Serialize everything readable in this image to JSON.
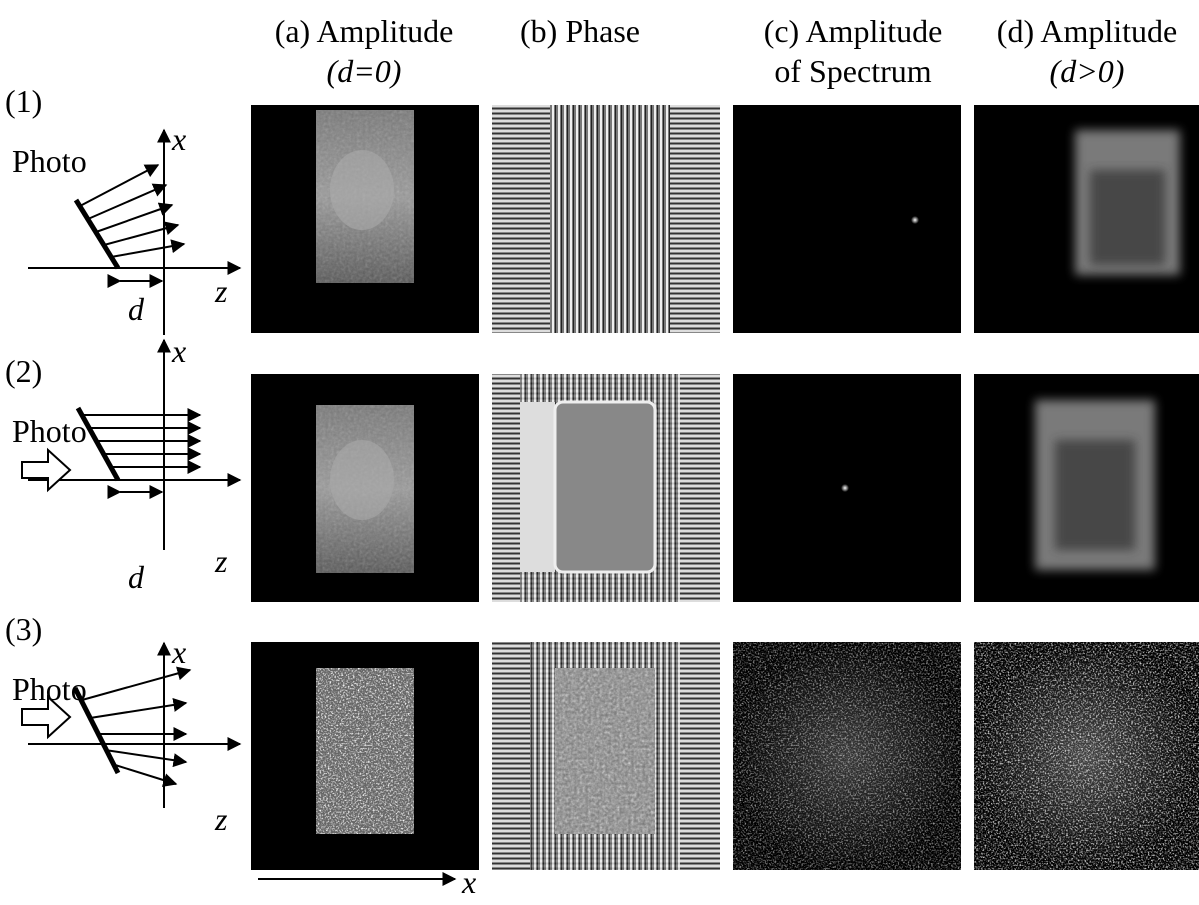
{
  "columns": [
    {
      "line1": "(a) Amplitude",
      "line2": "(d=0)"
    },
    {
      "line1": "(b) Phase"
    },
    {
      "line1": "(c) Amplitude",
      "line2": "of Spectrum"
    },
    {
      "line1": "(d) Amplitude",
      "line2": "(d>0)"
    }
  ],
  "rows": [
    {
      "label": "(1)",
      "photo": "Photo",
      "x_axis": "x",
      "z_axis": "z",
      "distance": "d"
    },
    {
      "label": "(2)",
      "photo": "Photo",
      "x_axis": "x",
      "z_axis": "z",
      "distance": "d"
    },
    {
      "label": "(3)",
      "photo": "Photo",
      "x_axis": "x",
      "z_axis": "z"
    }
  ],
  "bottom_axis": "x"
}
